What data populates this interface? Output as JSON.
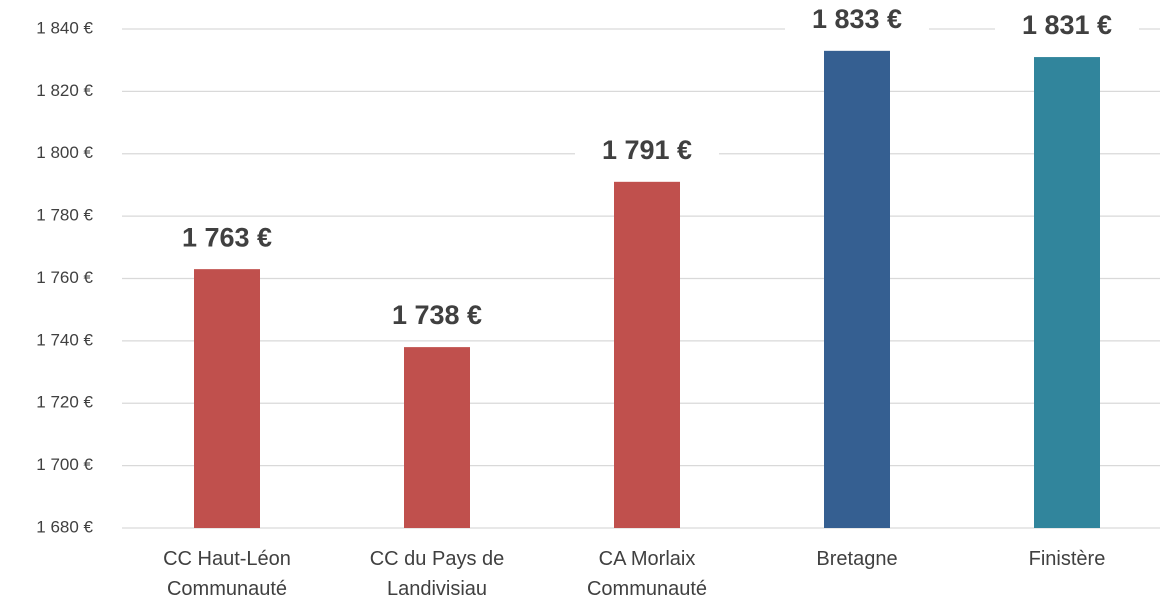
{
  "chart_data": {
    "type": "bar",
    "categories": [
      [
        "CC Haut-Léon",
        "Communauté"
      ],
      [
        "CC du Pays de",
        "Landivisiau"
      ],
      [
        "CA Morlaix",
        "Communauté"
      ],
      [
        "Bretagne"
      ],
      [
        "Finistère"
      ]
    ],
    "values": [
      1763,
      1738,
      1791,
      1833,
      1831
    ],
    "value_labels": [
      "1 763 €",
      "1 738 €",
      "1 791 €",
      "1 833 €",
      "1 831 €"
    ],
    "colors": [
      "#c0504d",
      "#c0504d",
      "#c0504d",
      "#355f91",
      "#31859c"
    ],
    "ylim": [
      1680,
      1840
    ],
    "yticks": [
      {
        "value": 1680,
        "label": "1 680 €"
      },
      {
        "value": 1700,
        "label": "1 700 €"
      },
      {
        "value": 1720,
        "label": "1 720 €"
      },
      {
        "value": 1740,
        "label": "1 740 €"
      },
      {
        "value": 1760,
        "label": "1 760 €"
      },
      {
        "value": 1780,
        "label": "1 780 €"
      },
      {
        "value": 1800,
        "label": "1 800 €"
      },
      {
        "value": 1820,
        "label": "1 820 €"
      },
      {
        "value": 1840,
        "label": "1 840 €"
      }
    ],
    "grid": true
  }
}
